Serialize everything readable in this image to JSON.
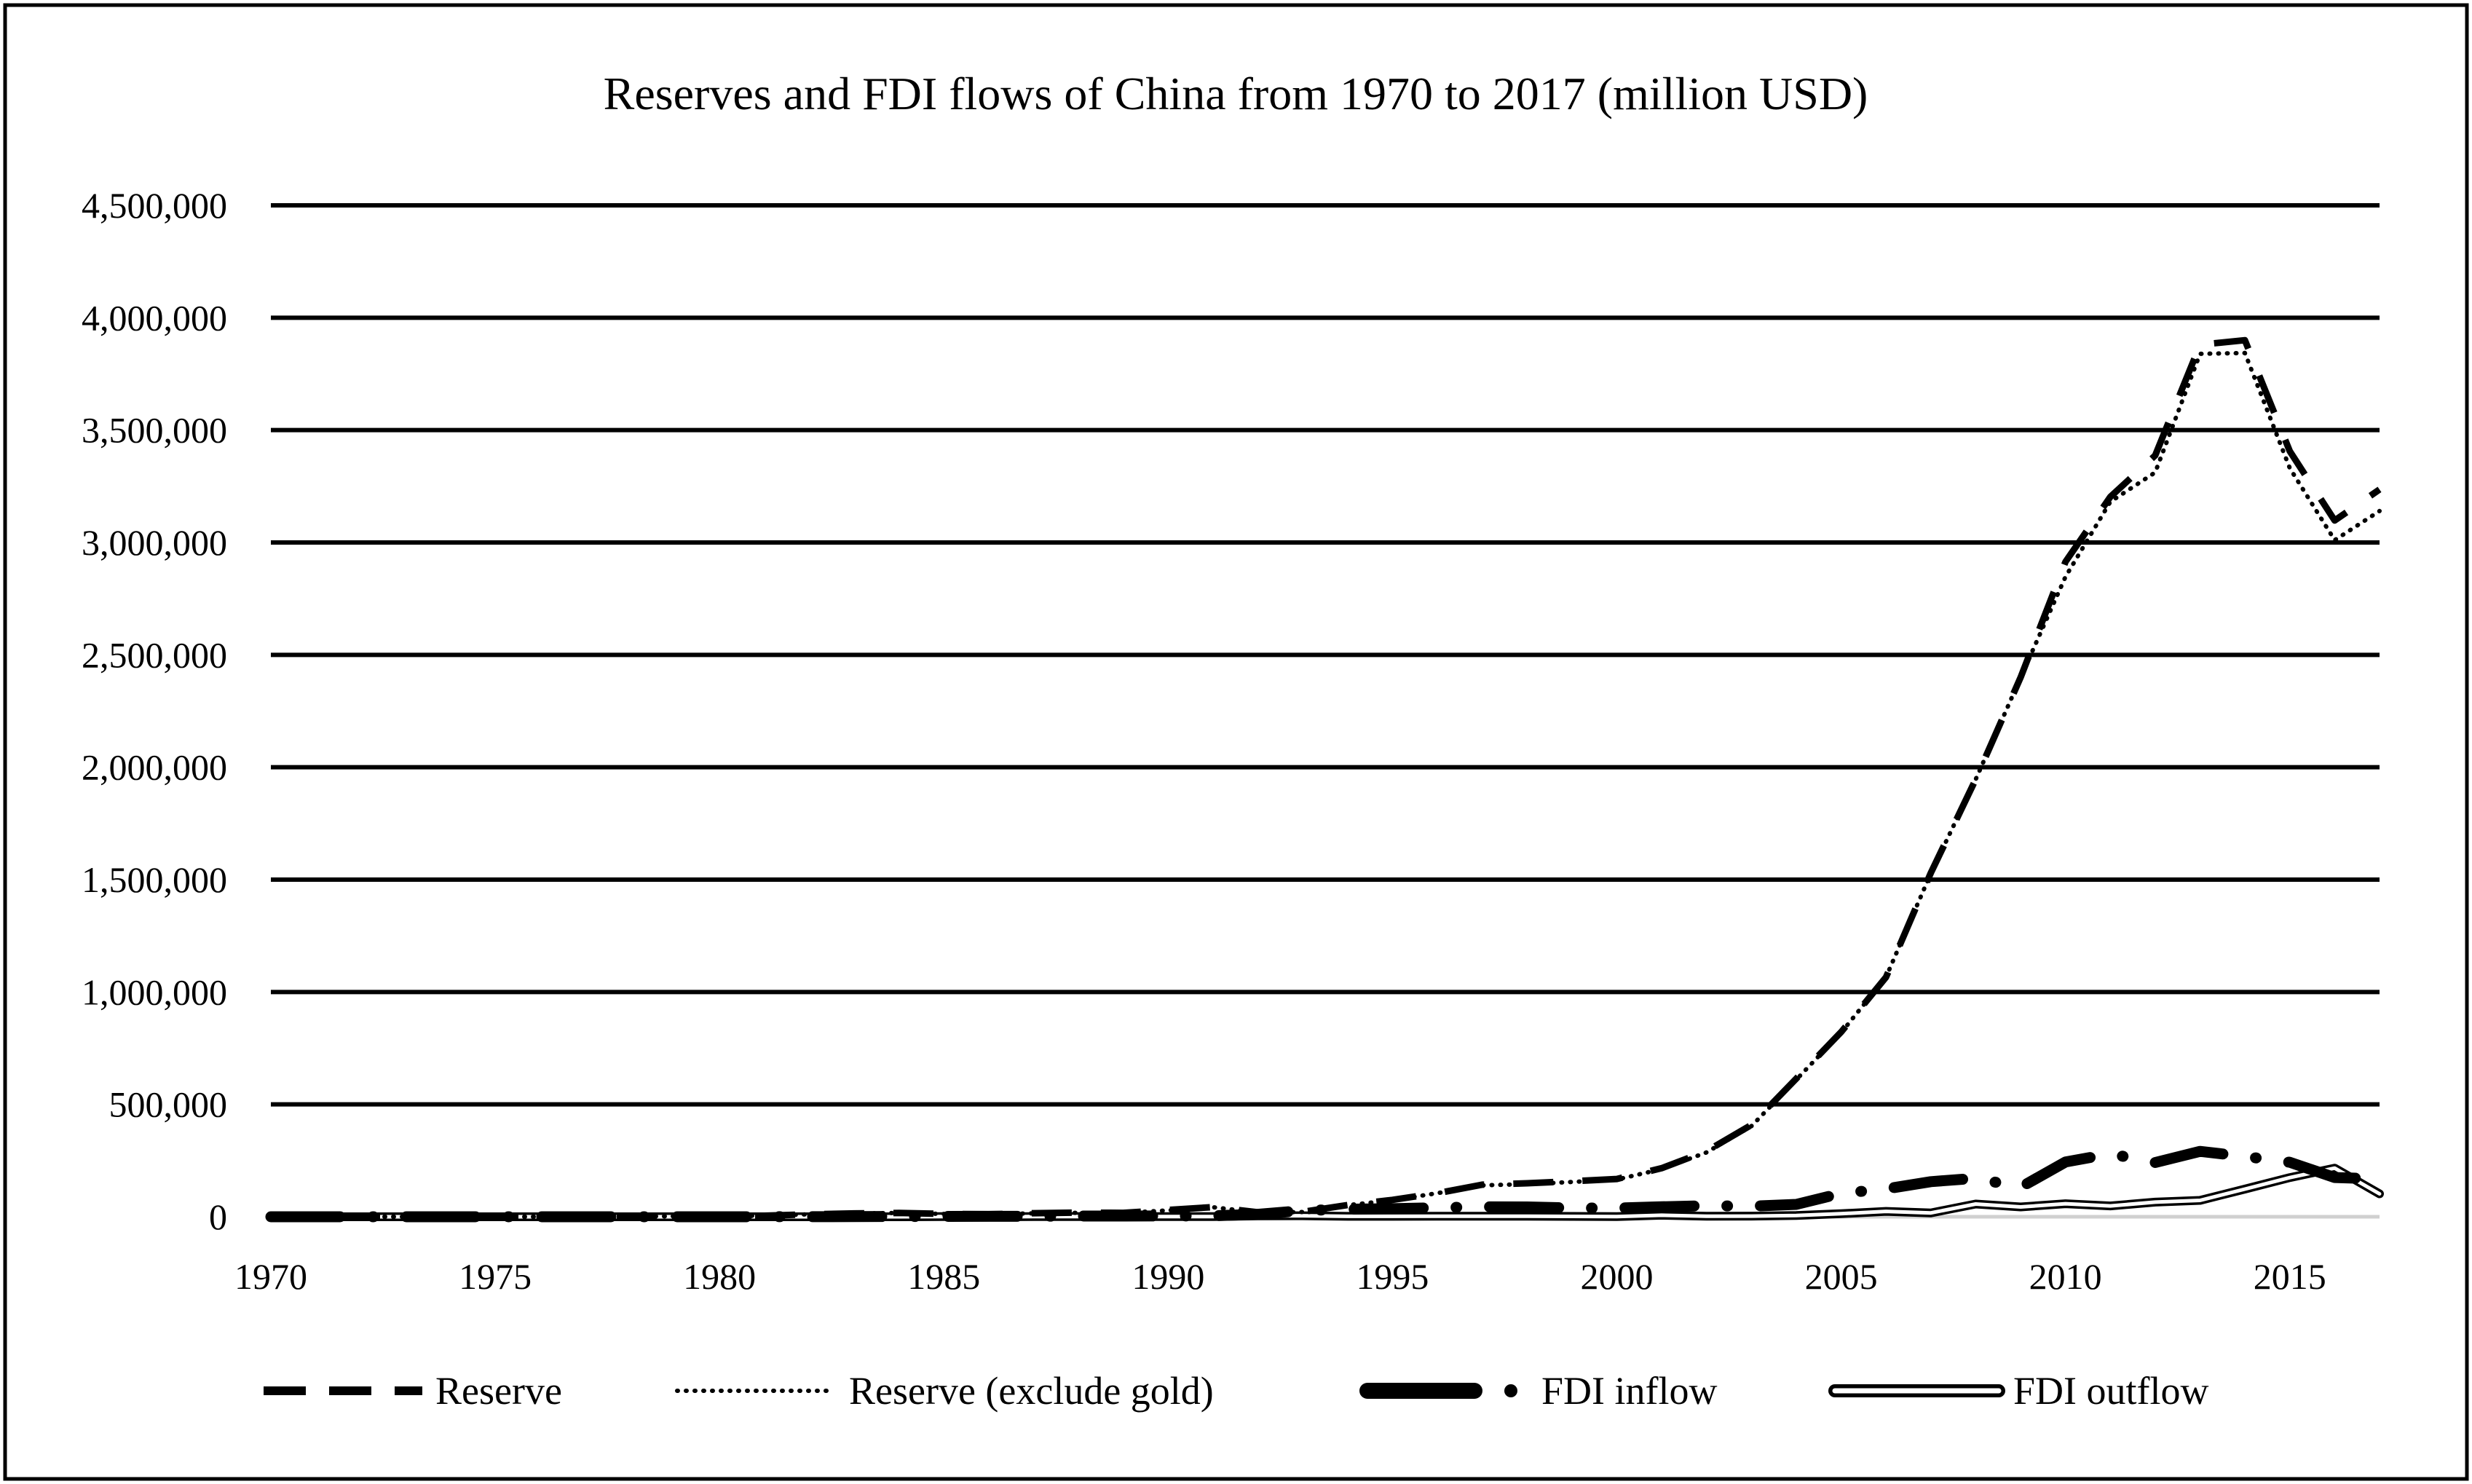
{
  "chart_data": {
    "type": "line",
    "title": "Reserves and FDI flows of China from 1970 to 2017 (million USD)",
    "xlabel": "",
    "ylabel": "",
    "xlim": [
      1970,
      2017
    ],
    "ylim": [
      0,
      4500000
    ],
    "xticks": [
      1970,
      1975,
      1980,
      1985,
      1990,
      1995,
      2000,
      2005,
      2010,
      2015
    ],
    "xtick_labels": [
      "1970",
      "1975",
      "1980",
      "1985",
      "1990",
      "1995",
      "2000",
      "2005",
      "2010",
      "2015"
    ],
    "yticks": [
      0,
      500000,
      1000000,
      1500000,
      2000000,
      2500000,
      3000000,
      3500000,
      4000000,
      4500000
    ],
    "ytick_labels": [
      "0",
      "500,000",
      "1,000,000",
      "1,500,000",
      "2,000,000",
      "2,500,000",
      "3,000,000",
      "3,500,000",
      "4,000,000",
      "4,500,000"
    ],
    "grid": "horizontal",
    "legend_position": "bottom",
    "x": [
      1970,
      1971,
      1972,
      1973,
      1974,
      1975,
      1976,
      1977,
      1978,
      1979,
      1980,
      1981,
      1982,
      1983,
      1984,
      1985,
      1986,
      1987,
      1988,
      1989,
      1990,
      1991,
      1992,
      1993,
      1994,
      1995,
      1996,
      1997,
      1998,
      1999,
      2000,
      2001,
      2002,
      2003,
      2004,
      2005,
      2006,
      2007,
      2008,
      2009,
      2010,
      2011,
      2012,
      2013,
      2014,
      2015,
      2016,
      2017
    ],
    "series": [
      {
        "name": "Reserve",
        "style": "dashed",
        "values": [
          957,
          810,
          1034,
          1207,
          1062,
          1032,
          1264,
          1563,
          2100,
          2700,
          3000,
          5000,
          11000,
          15000,
          17000,
          13000,
          11500,
          16000,
          18500,
          17500,
          30000,
          43000,
          20000,
          22000,
          52000,
          75000,
          105000,
          143000,
          149000,
          158000,
          168000,
          216000,
          292000,
          409000,
          615000,
          822000,
          1066000,
          1530000,
          1946000,
          2400000,
          2914000,
          3203000,
          3387000,
          3880000,
          3900000,
          3406000,
          3098000,
          3236000
        ]
      },
      {
        "name": "Reserve (exclude gold)",
        "style": "dotted",
        "values": [
          0,
          0,
          0,
          0,
          0,
          0,
          0,
          0,
          1600,
          2200,
          2500,
          4800,
          11000,
          14500,
          16700,
          12700,
          11000,
          15200,
          17500,
          17000,
          28600,
          42600,
          19400,
          21200,
          51600,
          73600,
          105000,
          140000,
          145000,
          154700,
          165600,
          212200,
          286400,
          403300,
          609900,
          818900,
          1066300,
          1528200,
          1946000,
          2399200,
          2847300,
          3181100,
          3311600,
          3839500,
          3843000,
          3330400,
          3010500,
          3139900
        ]
      },
      {
        "name": "FDI inflow",
        "style": "heavy-dash-dot",
        "values": [
          0,
          0,
          0,
          0,
          0,
          0,
          0,
          0,
          0,
          0,
          57,
          265,
          430,
          636,
          1258,
          1659,
          1875,
          2314,
          3194,
          3393,
          3487,
          4366,
          11156,
          27515,
          33787,
          35849,
          40180,
          44237,
          43751,
          38753,
          38399,
          44241,
          49308,
          47077,
          54936,
          104109,
          124082,
          156249,
          171535,
          131057,
          243703,
          280072,
          241214,
          290928,
          268097,
          242489,
          174750,
          168224
        ]
      },
      {
        "name": "FDI outflow",
        "style": "double",
        "values": [
          0,
          0,
          0,
          0,
          0,
          0,
          0,
          0,
          0,
          0,
          0,
          0,
          44,
          93,
          134,
          629,
          450,
          645,
          850,
          780,
          830,
          913,
          4000,
          4400,
          2000,
          2000,
          2114,
          2563,
          2634,
          1775,
          916,
          6885,
          2518,
          2855,
          5498,
          13730,
          23933,
          17155,
          56742,
          43890,
          58000,
          48421,
          64963,
          72971,
          123120,
          174391,
          216424,
          101914
        ]
      }
    ]
  }
}
